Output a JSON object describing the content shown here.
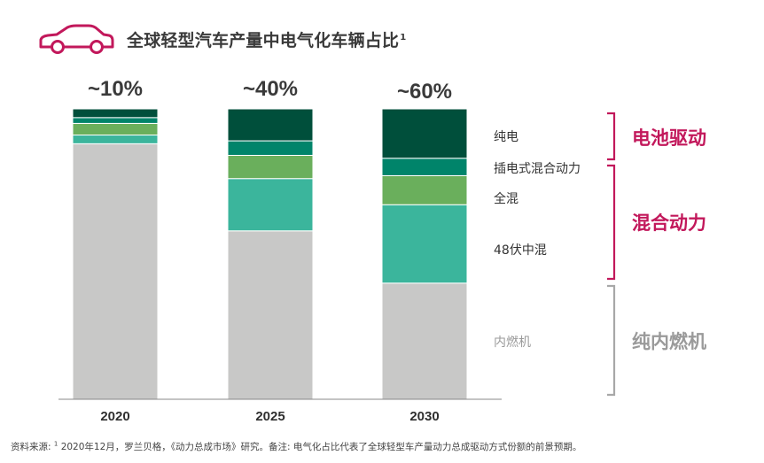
{
  "title": "全球轻型汽车产量中电气化车辆占比",
  "title_sup": "1",
  "colors": {
    "bev": "#004f3b",
    "phev": "#00846a",
    "fullhybrid": "#6aaf5c",
    "mild48": "#3bb59c",
    "ice": "#c8c8c7",
    "accent": "#c2185b",
    "bracket_gray": "#a8a8a8",
    "text_gray": "#9a9a9a"
  },
  "chart_data": {
    "type": "bar",
    "stacked": true,
    "title": "全球轻型汽车产量中电气化车辆占比",
    "categories": [
      "2020",
      "2025",
      "2030"
    ],
    "totals_labels": [
      "~10%",
      "~40%",
      "~60%"
    ],
    "ylim": [
      0,
      100
    ],
    "series": [
      {
        "key": "ice",
        "name": "内燃机",
        "values": [
          88,
          58,
          40
        ]
      },
      {
        "key": "mild48",
        "name": "48伏中混",
        "values": [
          3,
          18,
          27
        ]
      },
      {
        "key": "fullhybrid",
        "name": "全混",
        "values": [
          4,
          8,
          10
        ]
      },
      {
        "key": "phev",
        "name": "插电式混合动力",
        "values": [
          2,
          5,
          6
        ]
      },
      {
        "key": "bev",
        "name": "纯电",
        "values": [
          3,
          11,
          17
        ]
      }
    ],
    "groups": [
      {
        "name": "电池驱动",
        "members": [
          "纯电"
        ]
      },
      {
        "name": "混合动力",
        "members": [
          "插电式混合动力",
          "全混",
          "48伏中混"
        ]
      },
      {
        "name": "纯内燃机",
        "members": [
          "内燃机"
        ]
      }
    ]
  },
  "footnote": {
    "prefix": "资料来源: ",
    "sup": "1",
    "text": " 2020年12月，罗兰贝格，《动力总成市场》研究。备注: 电气化占比代表了全球轻型车产量动力总成驱动方式份额的前景预期。"
  }
}
